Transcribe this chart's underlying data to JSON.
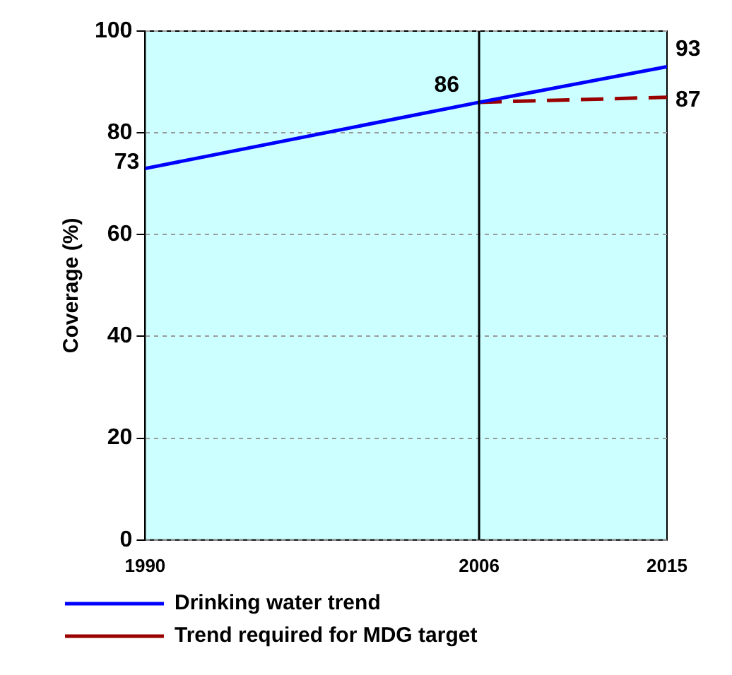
{
  "chart_data": {
    "type": "line",
    "ylabel": "Coverage (%)",
    "xlim": [
      1990,
      2015
    ],
    "xticks": [
      1990,
      2006,
      2015
    ],
    "ylim": [
      0,
      100
    ],
    "yticks": [
      0,
      20,
      40,
      60,
      80,
      100
    ],
    "grid": "y",
    "legend": "bottom",
    "marker": "none",
    "ref_lines": [
      {
        "axis": "x",
        "value": 2006,
        "color": "#000000"
      }
    ],
    "series": [
      {
        "name": "Drinking water trend",
        "color": "#0000ff",
        "x": [
          1990,
          2006,
          2015
        ],
        "values": [
          73,
          86,
          93
        ],
        "value_labels": [
          "73",
          "86",
          "93"
        ],
        "line_style": "solid"
      },
      {
        "name": "Trend required for MDG target",
        "color": "#990000",
        "x": [
          2006,
          2015
        ],
        "values": [
          86,
          87
        ],
        "value_labels": [
          null,
          "87"
        ],
        "line_style": "dashed"
      }
    ]
  }
}
